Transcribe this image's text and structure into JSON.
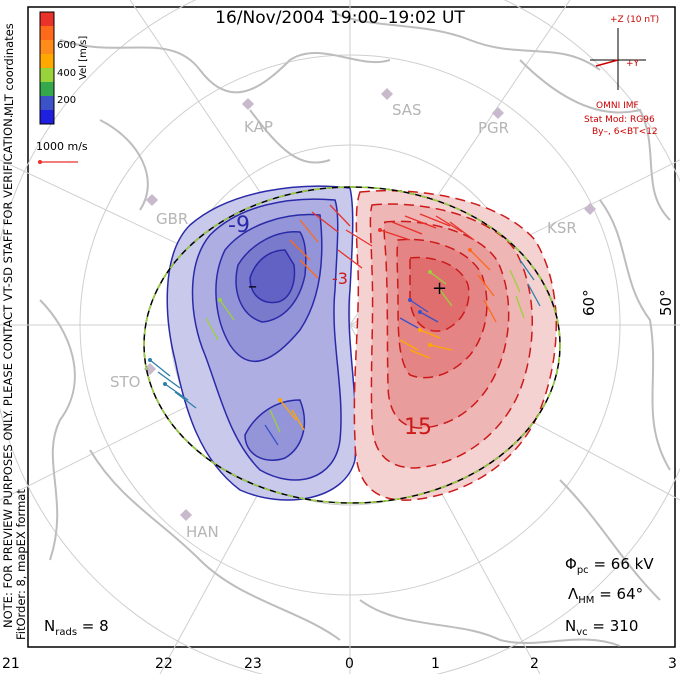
{
  "title": "16/Nov/2004  19:00–19:02  UT",
  "coordinate_system": "MLT coordinates",
  "note_lines": [
    "NOTE: FOR PREVIEW PURPOSES ONLY. PLEASE CONTACT VT-SD STAFF FOR VERIFICATION.",
    "FitOrder: 8, mapEX format"
  ],
  "colorbar": {
    "label": "Vel [m/s]",
    "ticks": [
      "600",
      "400",
      "200"
    ],
    "colors": [
      "#e8322a",
      "#ff6a1a",
      "#ffa800",
      "#9ad23c",
      "#36a84c",
      "#2f7fa8",
      "#3b52c8",
      "#1f1fe0"
    ]
  },
  "scale_vector": "1000 m/s",
  "stations": [
    "KAP",
    "SAS",
    "PGR",
    "GBR",
    "KSR",
    "STO",
    "HAN"
  ],
  "latitude_labels": [
    "60°",
    "50°"
  ],
  "contour_labels": [
    "-9",
    "15",
    "-3"
  ],
  "extrema": {
    "min": "–",
    "max": "+"
  },
  "imf": {
    "z_label": "+Z (10 nT)",
    "y_label": "+Y",
    "source": "OMNI IMF",
    "model": "Stat Mod: RG96",
    "condition": "By–, 6<BT<12"
  },
  "stats": {
    "phi_pc": "66 kV",
    "lambda_hm": "64°",
    "n_vc": "310",
    "n_rads": "8"
  },
  "mlt_axis": [
    "21",
    "22",
    "23",
    "0",
    "1",
    "2",
    "3"
  ],
  "colors": {
    "negative_cell": "#2a2aa8",
    "positive_cell": "#cc1a1a",
    "map_outline": "#bdbdbd",
    "grid": "#d0d0d0"
  }
}
